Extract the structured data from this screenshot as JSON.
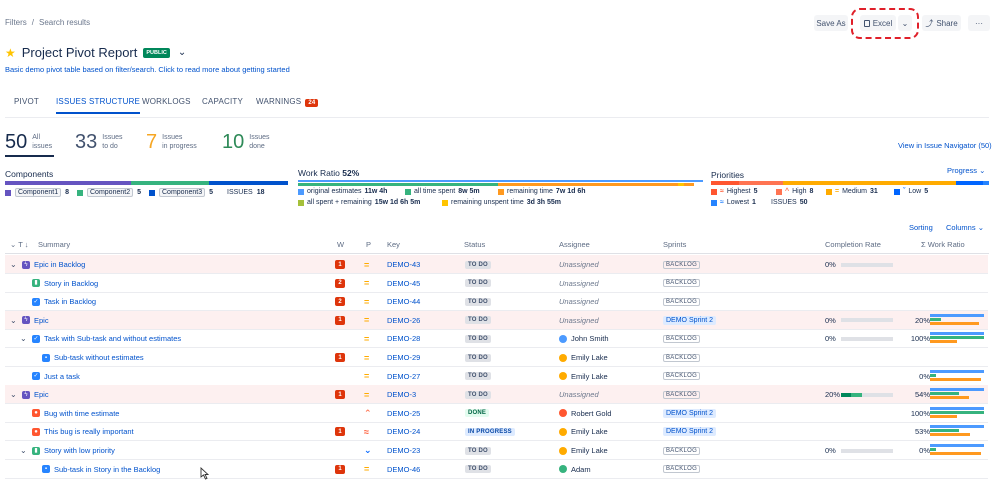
{
  "breadcrumb": {
    "filters": "Filters",
    "sep": "/",
    "current": "Search results"
  },
  "toolbar": {
    "save_as": "Save As",
    "excel": "Excel",
    "share": "Share",
    "more": "···"
  },
  "title": {
    "text": "Project Pivot Report",
    "badge": "PUBLIC",
    "description": "Basic demo pivot table based on filter/search. Click to read more about getting started"
  },
  "tabs": [
    {
      "label": "PIVOT"
    },
    {
      "label": "ISSUES STRUCTURE",
      "active": true
    },
    {
      "label": "WORKLOGS"
    },
    {
      "label": "CAPACITY"
    },
    {
      "label": "WARNINGS",
      "count": "24"
    }
  ],
  "stats": [
    {
      "num": "50",
      "l1": "All",
      "l2": "issues",
      "color": "#172b4d"
    },
    {
      "num": "33",
      "l1": "Issues",
      "l2": "to do",
      "color": "#42526e"
    },
    {
      "num": "7",
      "l1": "Issues",
      "l2": "in progress",
      "color": "#f6a623"
    },
    {
      "num": "10",
      "l1": "Issues",
      "l2": "done",
      "color": "#2e8a58"
    }
  ],
  "view_navigator": "View in Issue Navigator (50)",
  "components": {
    "title": "Components",
    "items": [
      {
        "name": "Component1",
        "count": "8",
        "color": "#6554c0"
      },
      {
        "name": "Component2",
        "count": "5",
        "color": "#36b37e"
      },
      {
        "name": "Component3",
        "count": "5",
        "color": "#0052cc"
      }
    ],
    "issues_label": "ISSUES",
    "issues_count": "18"
  },
  "work_ratio": {
    "title": "Work Ratio",
    "pct": "52%",
    "legend": [
      {
        "label": "original estimates",
        "value": "11w 4h",
        "color": "#4c9aff"
      },
      {
        "label": "all time spent",
        "value": "8w 5m",
        "color": "#36b37e"
      },
      {
        "label": "remaining time",
        "value": "7w 1d 6h",
        "color": "#ff991f"
      },
      {
        "label": "all spent + remaining",
        "value": "15w 1d 6h 5m",
        "color": "#a5c03a"
      },
      {
        "label": "remaining unspent time",
        "value": "3d 3h 55m",
        "color": "#ffc400"
      }
    ]
  },
  "priorities": {
    "title": "Priorities",
    "progress": "Progress",
    "items": [
      {
        "label": "Highest",
        "count": "5",
        "color": "#ff5630",
        "glyph": "≈"
      },
      {
        "label": "High",
        "count": "8",
        "color": "#ff7452",
        "glyph": "^"
      },
      {
        "label": "Medium",
        "count": "31",
        "color": "#ffab00",
        "glyph": "="
      },
      {
        "label": "Low",
        "count": "5",
        "color": "#0065ff",
        "glyph": "ˇ"
      },
      {
        "label": "Lowest",
        "count": "1",
        "color": "#2684ff",
        "glyph": "≈"
      }
    ],
    "issues_label": "ISSUES",
    "issues_count": "50"
  },
  "table_controls": {
    "sorting": "Sorting",
    "columns": "Columns"
  },
  "columns": {
    "t": "T",
    "summary": "Summary",
    "w": "W",
    "p": "P",
    "key": "Key",
    "status": "Status",
    "assignee": "Assignee",
    "sprints": "Sprints",
    "completion": "Completion Rate",
    "work_ratio": "Σ Work Ratio"
  },
  "rows": [
    {
      "indent": 0,
      "caret": true,
      "type": "epic",
      "summary": "Epic in Backlog",
      "w": "1",
      "p": "medium",
      "key": "DEMO-43",
      "status": "TO DO",
      "assignee": "Unassigned",
      "sprint": "BACKLOG",
      "completion": "0%",
      "cbar": 0,
      "wr": "",
      "wrbars": false
    },
    {
      "indent": 1,
      "caret": false,
      "type": "story",
      "summary": "Story in Backlog",
      "w": "2",
      "p": "medium",
      "key": "DEMO-45",
      "status": "TO DO",
      "assignee": "Unassigned",
      "sprint": "BACKLOG",
      "completion": "",
      "cbar": -1,
      "wr": "",
      "wrbars": false
    },
    {
      "indent": 1,
      "caret": false,
      "type": "task",
      "summary": "Task in Backlog",
      "w": "2",
      "p": "medium",
      "key": "DEMO-44",
      "status": "TO DO",
      "assignee": "Unassigned",
      "sprint": "BACKLOG",
      "completion": "",
      "cbar": -1,
      "wr": "",
      "wrbars": false
    },
    {
      "indent": 0,
      "caret": true,
      "type": "epic",
      "summary": "Epic",
      "w": "1",
      "p": "medium",
      "key": "DEMO-26",
      "status": "TO DO",
      "assignee": "Unassigned",
      "sprint": "DEMO Sprint 2",
      "completion": "0%",
      "cbar": 0,
      "wr": "20%",
      "wrbars": true
    },
    {
      "indent": 1,
      "caret": true,
      "type": "task",
      "summary": "Task with Sub-task and without estimates",
      "w": "",
      "p": "medium",
      "key": "DEMO-28",
      "status": "TO DO",
      "assignee": "John Smith",
      "sprint": "BACKLOG",
      "completion": "0%",
      "cbar": 0,
      "wr": "100%",
      "wrbars": true
    },
    {
      "indent": 2,
      "caret": false,
      "type": "subtask",
      "summary": "Sub-task without estimates",
      "w": "1",
      "p": "medium",
      "key": "DEMO-29",
      "status": "TO DO",
      "assignee": "Emily Lake",
      "sprint": "BACKLOG",
      "completion": "",
      "cbar": -1,
      "wr": "",
      "wrbars": false
    },
    {
      "indent": 1,
      "caret": false,
      "type": "task",
      "summary": "Just a task",
      "w": "",
      "p": "medium",
      "key": "DEMO-27",
      "status": "TO DO",
      "assignee": "Emily Lake",
      "sprint": "BACKLOG",
      "completion": "",
      "cbar": -1,
      "wr": "0%",
      "wrbars": true
    },
    {
      "indent": 0,
      "caret": true,
      "type": "epic",
      "summary": "Epic",
      "w": "1",
      "p": "medium",
      "key": "DEMO-3",
      "status": "TO DO",
      "assignee": "Unassigned",
      "sprint": "BACKLOG",
      "completion": "20%",
      "cbar": 20,
      "wr": "54%",
      "wrbars": true
    },
    {
      "indent": 1,
      "caret": false,
      "type": "bug",
      "summary": "Bug with time estimate",
      "w": "",
      "p": "high",
      "key": "DEMO-25",
      "status": "DONE",
      "assignee": "Robert Gold",
      "sprint": "DEMO Sprint 2",
      "completion": "",
      "cbar": -1,
      "wr": "100%",
      "wrbars": true
    },
    {
      "indent": 1,
      "caret": false,
      "type": "bug",
      "summary": "This bug is really important",
      "w": "1",
      "p": "highest",
      "key": "DEMO-24",
      "status": "IN PROGRESS",
      "assignee": "Emily Lake",
      "sprint": "DEMO Sprint 2",
      "completion": "",
      "cbar": -1,
      "wr": "53%",
      "wrbars": true
    },
    {
      "indent": 1,
      "caret": true,
      "type": "story",
      "summary": "Story with low priority",
      "w": "",
      "p": "low",
      "key": "DEMO-23",
      "status": "TO DO",
      "assignee": "Emily Lake",
      "sprint": "BACKLOG",
      "completion": "0%",
      "cbar": 0,
      "wr": "0%",
      "wrbars": true
    },
    {
      "indent": 2,
      "caret": false,
      "type": "subtask",
      "summary": "Sub-task in Story in the Backlog",
      "w": "1",
      "p": "medium",
      "key": "DEMO-46",
      "status": "TO DO",
      "assignee": "Adam",
      "sprint": "BACKLOG",
      "completion": "",
      "cbar": -1,
      "wr": "",
      "wrbars": false
    }
  ]
}
